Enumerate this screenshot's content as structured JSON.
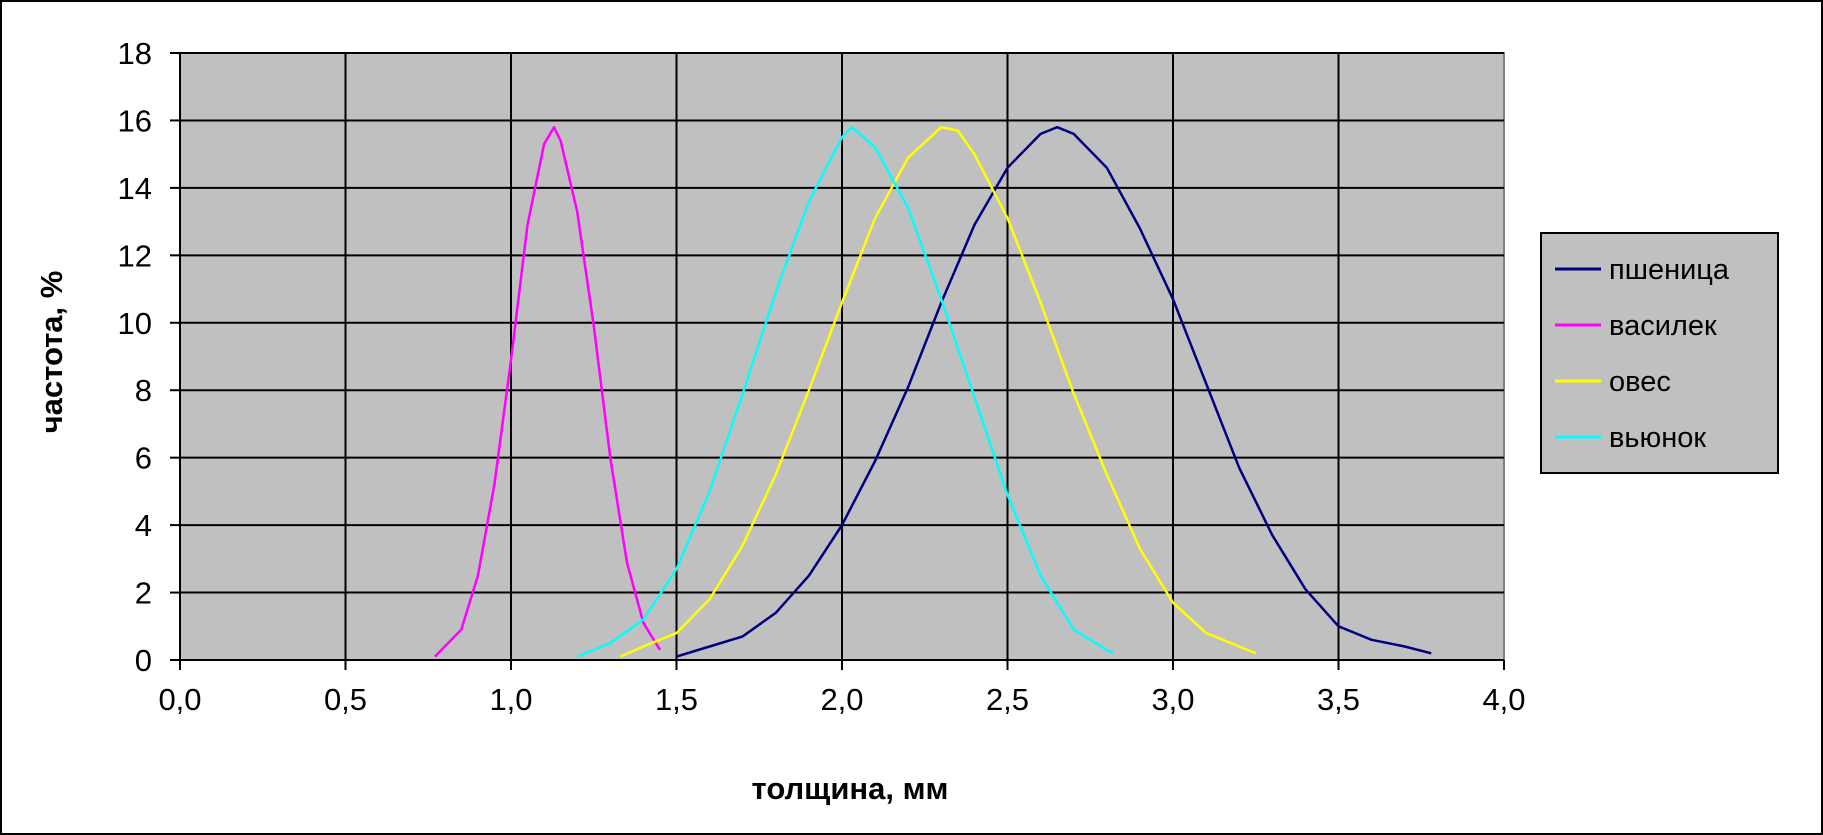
{
  "chart_data": {
    "type": "line",
    "title": "",
    "xlabel": "толщина, мм",
    "ylabel": "частота, %",
    "xlim": [
      0,
      4
    ],
    "ylim": [
      0,
      18
    ],
    "x_ticks": [
      "0,0",
      "0,5",
      "1,0",
      "1,5",
      "2,0",
      "2,5",
      "3,0",
      "3,5",
      "4,0"
    ],
    "y_ticks": [
      "0",
      "2",
      "4",
      "6",
      "8",
      "10",
      "12",
      "14",
      "16",
      "18"
    ],
    "grid": true,
    "plot_background": "#c0c0c0",
    "legend_position": "right",
    "series": [
      {
        "name": "пшеница",
        "color": "#000080",
        "points": [
          [
            1.5,
            0.1
          ],
          [
            1.6,
            0.4
          ],
          [
            1.7,
            0.7
          ],
          [
            1.8,
            1.4
          ],
          [
            1.9,
            2.5
          ],
          [
            2.0,
            4.0
          ],
          [
            2.1,
            5.9
          ],
          [
            2.2,
            8.1
          ],
          [
            2.3,
            10.6
          ],
          [
            2.4,
            12.9
          ],
          [
            2.5,
            14.6
          ],
          [
            2.6,
            15.6
          ],
          [
            2.65,
            15.8
          ],
          [
            2.7,
            15.6
          ],
          [
            2.8,
            14.6
          ],
          [
            2.9,
            12.8
          ],
          [
            3.0,
            10.7
          ],
          [
            3.1,
            8.2
          ],
          [
            3.2,
            5.7
          ],
          [
            3.3,
            3.7
          ],
          [
            3.4,
            2.1
          ],
          [
            3.5,
            1.0
          ],
          [
            3.6,
            0.6
          ],
          [
            3.7,
            0.4
          ],
          [
            3.78,
            0.2
          ]
        ]
      },
      {
        "name": "василек",
        "color": "#ff00ff",
        "points": [
          [
            0.77,
            0.1
          ],
          [
            0.8,
            0.4
          ],
          [
            0.85,
            0.9
          ],
          [
            0.9,
            2.5
          ],
          [
            0.95,
            5.2
          ],
          [
            1.0,
            8.9
          ],
          [
            1.05,
            12.9
          ],
          [
            1.1,
            15.3
          ],
          [
            1.13,
            15.8
          ],
          [
            1.15,
            15.4
          ],
          [
            1.2,
            13.3
          ],
          [
            1.25,
            9.9
          ],
          [
            1.3,
            6.0
          ],
          [
            1.35,
            2.9
          ],
          [
            1.4,
            1.1
          ],
          [
            1.45,
            0.3
          ]
        ]
      },
      {
        "name": "овес",
        "color": "#ffff00",
        "points": [
          [
            1.33,
            0.1
          ],
          [
            1.4,
            0.4
          ],
          [
            1.5,
            0.8
          ],
          [
            1.6,
            1.8
          ],
          [
            1.7,
            3.4
          ],
          [
            1.8,
            5.5
          ],
          [
            1.9,
            8.0
          ],
          [
            2.0,
            10.6
          ],
          [
            2.1,
            13.1
          ],
          [
            2.2,
            14.9
          ],
          [
            2.3,
            15.8
          ],
          [
            2.35,
            15.7
          ],
          [
            2.4,
            15.0
          ],
          [
            2.5,
            13.1
          ],
          [
            2.6,
            10.6
          ],
          [
            2.7,
            7.9
          ],
          [
            2.8,
            5.5
          ],
          [
            2.9,
            3.3
          ],
          [
            3.0,
            1.7
          ],
          [
            3.1,
            0.8
          ],
          [
            3.2,
            0.4
          ],
          [
            3.25,
            0.2
          ]
        ]
      },
      {
        "name": "вьюнок",
        "color": "#00ffff",
        "points": [
          [
            1.2,
            0.1
          ],
          [
            1.3,
            0.5
          ],
          [
            1.4,
            1.2
          ],
          [
            1.5,
            2.7
          ],
          [
            1.6,
            5.0
          ],
          [
            1.7,
            7.9
          ],
          [
            1.8,
            10.9
          ],
          [
            1.9,
            13.6
          ],
          [
            2.0,
            15.5
          ],
          [
            2.03,
            15.8
          ],
          [
            2.1,
            15.2
          ],
          [
            2.2,
            13.4
          ],
          [
            2.3,
            10.7
          ],
          [
            2.4,
            7.8
          ],
          [
            2.5,
            4.9
          ],
          [
            2.6,
            2.5
          ],
          [
            2.7,
            0.9
          ],
          [
            2.8,
            0.3
          ],
          [
            2.82,
            0.2
          ]
        ]
      }
    ]
  }
}
